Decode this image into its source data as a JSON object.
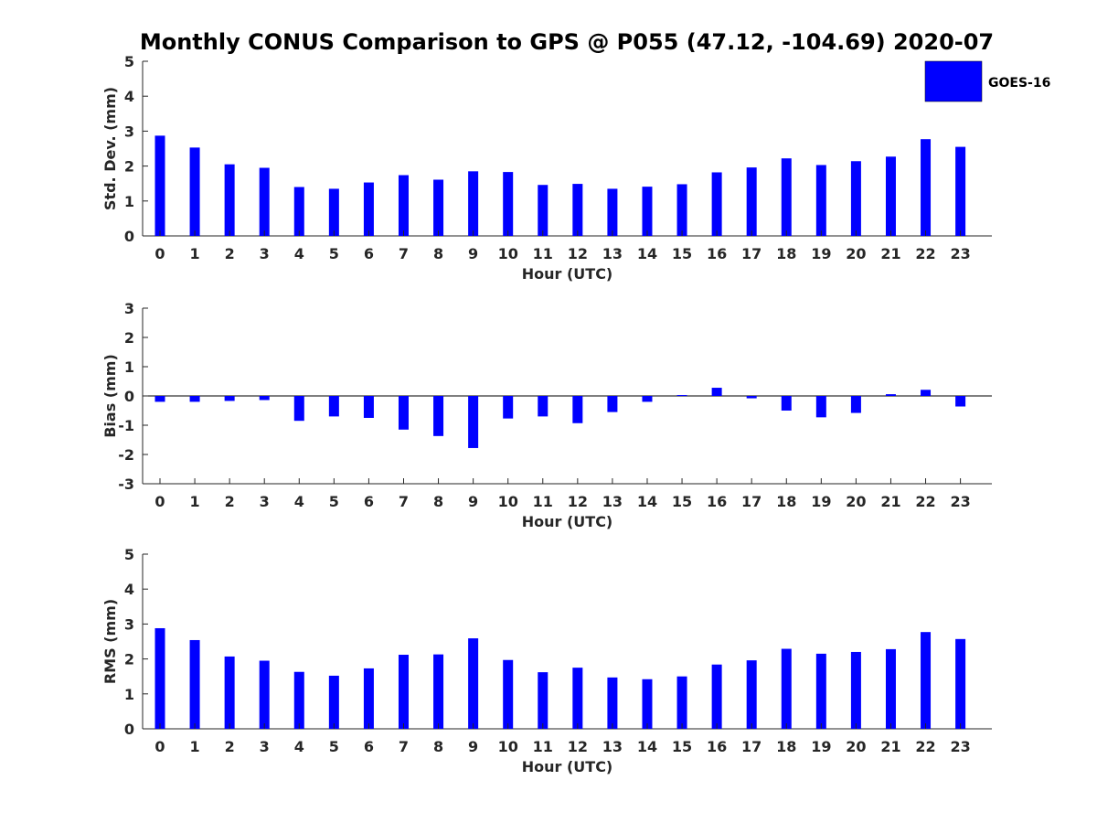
{
  "title": "Monthly CONUS Comparison to GPS @ P055 (47.12, -104.69) 2020-07",
  "legend": {
    "entry": "GOES-16",
    "color": "#0000FF"
  },
  "chart_data": [
    {
      "type": "bar",
      "xlabel": "Hour (UTC)",
      "ylabel": "Std. Dev. (mm)",
      "ylim": [
        0,
        5
      ],
      "yticks": [
        0,
        1,
        2,
        3,
        4,
        5
      ],
      "categories": [
        "0",
        "1",
        "2",
        "3",
        "4",
        "5",
        "6",
        "7",
        "8",
        "9",
        "10",
        "11",
        "12",
        "13",
        "14",
        "15",
        "16",
        "17",
        "18",
        "19",
        "20",
        "21",
        "22",
        "23"
      ],
      "series": [
        {
          "name": "GOES-16",
          "color": "#0000FF",
          "values": [
            2.87,
            2.53,
            2.05,
            1.95,
            1.4,
            1.35,
            1.53,
            1.74,
            1.61,
            1.85,
            1.83,
            1.46,
            1.49,
            1.35,
            1.41,
            1.48,
            1.82,
            1.96,
            2.22,
            2.03,
            2.14,
            2.27,
            2.77,
            2.55
          ]
        }
      ]
    },
    {
      "type": "bar",
      "xlabel": "Hour (UTC)",
      "ylabel": "Bias (mm)",
      "ylim": [
        -3,
        3
      ],
      "yticks": [
        -3,
        -2,
        -1,
        0,
        1,
        2,
        3
      ],
      "categories": [
        "0",
        "1",
        "2",
        "3",
        "4",
        "5",
        "6",
        "7",
        "8",
        "9",
        "10",
        "11",
        "12",
        "13",
        "14",
        "15",
        "16",
        "17",
        "18",
        "19",
        "20",
        "21",
        "22",
        "23"
      ],
      "series": [
        {
          "name": "GOES-16",
          "color": "#0000FF",
          "values": [
            -0.2,
            -0.2,
            -0.17,
            -0.14,
            -0.85,
            -0.7,
            -0.75,
            -1.15,
            -1.37,
            -1.78,
            -0.77,
            -0.7,
            -0.93,
            -0.55,
            -0.2,
            0.03,
            0.28,
            -0.08,
            -0.5,
            -0.73,
            -0.58,
            0.06,
            0.21,
            -0.36
          ]
        }
      ]
    },
    {
      "type": "bar",
      "xlabel": "Hour (UTC)",
      "ylabel": "RMS (mm)",
      "ylim": [
        0,
        5
      ],
      "yticks": [
        0,
        1,
        2,
        3,
        4,
        5
      ],
      "categories": [
        "0",
        "1",
        "2",
        "3",
        "4",
        "5",
        "6",
        "7",
        "8",
        "9",
        "10",
        "11",
        "12",
        "13",
        "14",
        "15",
        "16",
        "17",
        "18",
        "19",
        "20",
        "21",
        "22",
        "23"
      ],
      "series": [
        {
          "name": "GOES-16",
          "color": "#0000FF",
          "values": [
            2.88,
            2.54,
            2.07,
            1.95,
            1.63,
            1.52,
            1.73,
            2.12,
            2.13,
            2.59,
            1.97,
            1.62,
            1.75,
            1.47,
            1.42,
            1.5,
            1.84,
            1.96,
            2.29,
            2.15,
            2.2,
            2.28,
            2.77,
            2.57
          ]
        }
      ]
    }
  ]
}
